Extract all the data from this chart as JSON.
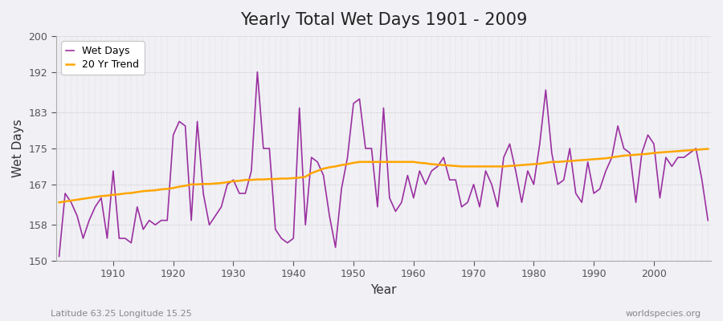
{
  "title": "Yearly Total Wet Days 1901 - 2009",
  "xlabel": "Year",
  "ylabel": "Wet Days",
  "footnote_left": "Latitude 63.25 Longitude 15.25",
  "footnote_right": "worldspecies.org",
  "legend_wet": "Wet Days",
  "legend_trend": "20 Yr Trend",
  "ylim": [
    150,
    200
  ],
  "xlim": [
    1901,
    2009
  ],
  "yticks": [
    150,
    158,
    167,
    175,
    183,
    192,
    200
  ],
  "xticks": [
    1910,
    1920,
    1930,
    1940,
    1950,
    1960,
    1970,
    1980,
    1990,
    2000
  ],
  "wet_color": "#9B30A0",
  "trend_color": "#FFA500",
  "bg_color": "#F0F0F5",
  "plot_bg_color": "#F0F0F5",
  "grid_color": "#CCCCCC",
  "wet_days": [
    151,
    165,
    163,
    160,
    155,
    159,
    162,
    164,
    155,
    170,
    155,
    155,
    154,
    162,
    157,
    159,
    158,
    159,
    159,
    178,
    181,
    180,
    159,
    181,
    165,
    158,
    160,
    162,
    167,
    168,
    165,
    165,
    170,
    192,
    175,
    175,
    157,
    155,
    154,
    155,
    184,
    158,
    173,
    172,
    169,
    160,
    153,
    166,
    173,
    185,
    186,
    175,
    175,
    162,
    184,
    164,
    161,
    163,
    169,
    164,
    170,
    167,
    170,
    171,
    173,
    168,
    168,
    162,
    163,
    167,
    162,
    170,
    167,
    162,
    173,
    176,
    170,
    163,
    170,
    167,
    176,
    188,
    174,
    167,
    168,
    175,
    165,
    163,
    172,
    165,
    166,
    170,
    173,
    180,
    175,
    174,
    163,
    174,
    178,
    176,
    164,
    173,
    171,
    173,
    173,
    174,
    175,
    168,
    159
  ],
  "trend_days": [
    163.0,
    163.2,
    163.4,
    163.6,
    163.8,
    164.0,
    164.2,
    164.4,
    164.5,
    164.7,
    164.8,
    165.0,
    165.1,
    165.3,
    165.5,
    165.6,
    165.7,
    165.9,
    166.0,
    166.2,
    166.5,
    166.7,
    167.0,
    167.0,
    167.1,
    167.1,
    167.2,
    167.3,
    167.5,
    167.7,
    167.8,
    168.0,
    168.0,
    168.1,
    168.1,
    168.2,
    168.2,
    168.3,
    168.3,
    168.4,
    168.5,
    168.7,
    169.5,
    170.0,
    170.5,
    170.8,
    171.0,
    171.3,
    171.5,
    171.8,
    172.0,
    172.0,
    172.0,
    172.0,
    172.0,
    172.0,
    172.0,
    172.0,
    172.0,
    172.0,
    171.8,
    171.7,
    171.5,
    171.4,
    171.3,
    171.2,
    171.1,
    171.0,
    171.0,
    171.0,
    171.0,
    171.0,
    171.0,
    171.0,
    171.0,
    171.1,
    171.2,
    171.3,
    171.4,
    171.5,
    171.6,
    171.8,
    172.0,
    172.0,
    172.1,
    172.2,
    172.3,
    172.4,
    172.5,
    172.6,
    172.7,
    172.8,
    173.0,
    173.2,
    173.4,
    173.5,
    173.6,
    173.7,
    173.8,
    174.0,
    174.1,
    174.2,
    174.3,
    174.4,
    174.5,
    174.6,
    174.7,
    174.8,
    174.9
  ]
}
